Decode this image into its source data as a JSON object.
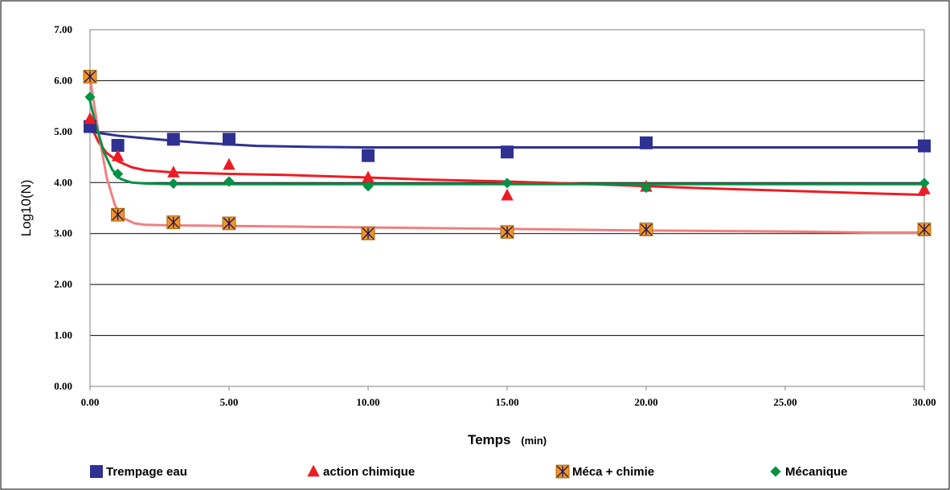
{
  "chart_data": {
    "type": "scatter",
    "title": "",
    "xlabel": "Temps",
    "xlabel_unit": "(min)",
    "ylabel": "Log10(N)",
    "xlim": [
      0,
      30
    ],
    "ylim": [
      0,
      7
    ],
    "x_ticks": [
      "0.00",
      "5.00",
      "10.00",
      "15.00",
      "20.00",
      "25.00",
      "30.00"
    ],
    "y_ticks": [
      "0.00",
      "1.00",
      "2.00",
      "3.00",
      "4.00",
      "5.00",
      "6.00",
      "7.00"
    ],
    "grid": "horizontal",
    "legend_position": "bottom",
    "series": [
      {
        "name": "Trempage eau",
        "color": "#2e3192",
        "marker": "square",
        "x": [
          0,
          1,
          3,
          5,
          10,
          15,
          20,
          30
        ],
        "y": [
          5.1,
          4.73,
          4.85,
          4.85,
          4.53,
          4.6,
          4.78,
          4.72
        ],
        "fit_x": [
          0,
          1,
          2,
          3,
          4,
          5,
          6,
          8,
          10,
          15,
          20,
          25,
          30
        ],
        "fit_y": [
          5.0,
          4.92,
          4.87,
          4.82,
          4.78,
          4.75,
          4.72,
          4.7,
          4.69,
          4.69,
          4.69,
          4.69,
          4.69
        ]
      },
      {
        "name": "action chimique",
        "color": "#ed1c24",
        "marker": "triangle",
        "x": [
          0,
          1,
          3,
          5,
          10,
          15,
          20,
          30
        ],
        "y": [
          5.25,
          4.52,
          4.2,
          4.35,
          4.1,
          3.75,
          3.92,
          3.87
        ],
        "fit_x": [
          0,
          0.3,
          0.6,
          1,
          1.5,
          2,
          3,
          5,
          7,
          10,
          12,
          15,
          18,
          20,
          22,
          25,
          28,
          30
        ],
        "fit_y": [
          5.15,
          4.8,
          4.58,
          4.42,
          4.3,
          4.24,
          4.2,
          4.17,
          4.15,
          4.1,
          4.06,
          4.02,
          3.97,
          3.93,
          3.89,
          3.84,
          3.79,
          3.76
        ]
      },
      {
        "name": "Méca + chimie",
        "color": "#f7941d",
        "marker": "asterisk-square",
        "line_color": "#f08080",
        "x": [
          0,
          1,
          3,
          5,
          10,
          15,
          20,
          30
        ],
        "y": [
          6.08,
          3.37,
          3.22,
          3.2,
          3.0,
          3.03,
          3.08,
          3.08
        ],
        "fit_x": [
          0,
          0.3,
          0.6,
          0.9,
          1.2,
          1.6,
          2,
          3,
          5,
          10,
          15,
          20,
          25,
          28,
          30
        ],
        "fit_y": [
          6.05,
          5.0,
          4.1,
          3.55,
          3.3,
          3.2,
          3.17,
          3.16,
          3.15,
          3.12,
          3.09,
          3.06,
          3.04,
          3.02,
          3.02
        ]
      },
      {
        "name": "Mécanique",
        "color": "#009245",
        "marker": "diamond",
        "x": [
          0,
          1,
          3,
          5,
          10,
          15,
          20,
          30
        ],
        "y": [
          5.68,
          4.17,
          3.98,
          4.02,
          3.93,
          3.99,
          3.9,
          3.99
        ],
        "fit_x": [
          0,
          0.2,
          0.5,
          0.8,
          1.1,
          1.5,
          2,
          3,
          5,
          10,
          15,
          20,
          25,
          30
        ],
        "fit_y": [
          5.6,
          5.15,
          4.6,
          4.25,
          4.07,
          4.0,
          3.98,
          3.97,
          3.97,
          3.97,
          3.97,
          3.97,
          3.97,
          3.97
        ]
      }
    ]
  }
}
